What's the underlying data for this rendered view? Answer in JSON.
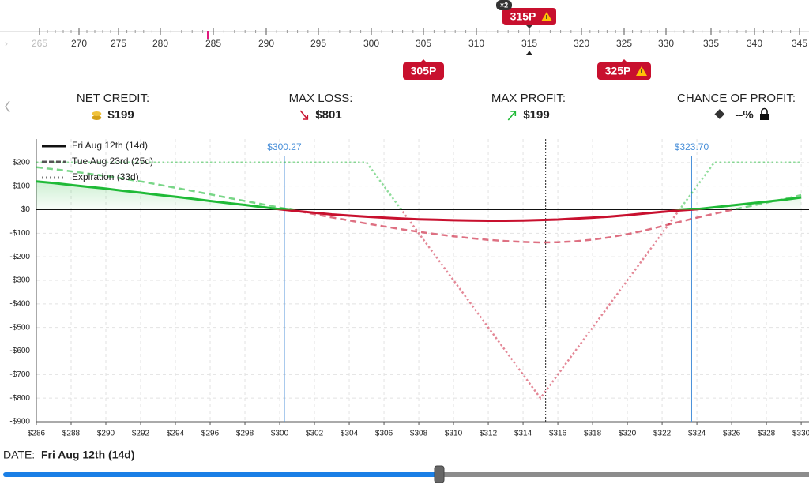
{
  "strike_ruler": {
    "ticks": [
      265,
      270,
      275,
      280,
      285,
      290,
      295,
      300,
      305,
      310,
      315,
      320,
      325,
      330,
      335,
      340,
      345
    ],
    "legs": [
      {
        "label": "315P",
        "strike": 315,
        "quantity_label": "×2",
        "position": "top"
      },
      {
        "label": "305P",
        "strike": 305,
        "position": "bottom"
      },
      {
        "label": "325P",
        "strike": 325,
        "position": "bottom"
      }
    ]
  },
  "summary": [
    {
      "label": "NET CREDIT:",
      "value": "$199"
    },
    {
      "label": "MAX LOSS:",
      "value": "$801"
    },
    {
      "label": "MAX PROFIT:",
      "value": "$199"
    },
    {
      "label": "CHANCE OF PROFIT:",
      "value": "--%"
    }
  ],
  "chart_data": {
    "type": "line",
    "profit_color": "#1fba37",
    "loss_color": "#c8102e",
    "grid": true,
    "legend": "top-left",
    "xlim": [
      286,
      330.45
    ],
    "ylim": [
      -900,
      300
    ],
    "xticks": [
      {
        "value": 286,
        "label": "$286"
      },
      {
        "value": 288,
        "label": "$288"
      },
      {
        "value": 290,
        "label": "$290"
      },
      {
        "value": 292,
        "label": "$292"
      },
      {
        "value": 294,
        "label": "$294"
      },
      {
        "value": 296,
        "label": "$296"
      },
      {
        "value": 298,
        "label": "$298"
      },
      {
        "value": 300,
        "label": "$300"
      },
      {
        "value": 302,
        "label": "$302"
      },
      {
        "value": 304,
        "label": "$304"
      },
      {
        "value": 306,
        "label": "$306"
      },
      {
        "value": 308,
        "label": "$308"
      },
      {
        "value": 310,
        "label": "$310"
      },
      {
        "value": 312,
        "label": "$312"
      },
      {
        "value": 314,
        "label": "$314"
      },
      {
        "value": 316,
        "label": "$316"
      },
      {
        "value": 318,
        "label": "$318"
      },
      {
        "value": 320,
        "label": "$320"
      },
      {
        "value": 322,
        "label": "$322"
      },
      {
        "value": 324,
        "label": "$324"
      },
      {
        "value": 326,
        "label": "$326"
      },
      {
        "value": 328,
        "label": "$328"
      },
      {
        "value": 330,
        "label": "$330"
      }
    ],
    "yticks": [
      {
        "value": 200,
        "label": "$200"
      },
      {
        "value": 100,
        "label": "$100"
      },
      {
        "value": 0,
        "label": "$0"
      },
      {
        "value": -100,
        "label": "-$100"
      },
      {
        "value": -200,
        "label": "-$200"
      },
      {
        "value": -300,
        "label": "-$300"
      },
      {
        "value": -400,
        "label": "-$400"
      },
      {
        "value": -500,
        "label": "-$500"
      },
      {
        "value": -600,
        "label": "-$600"
      },
      {
        "value": -700,
        "label": "-$700"
      },
      {
        "value": -800,
        "label": "-$800"
      },
      {
        "value": -900,
        "label": "-$900"
      }
    ],
    "breakevens": [
      {
        "value": 300.27,
        "label": "$300.27"
      },
      {
        "value": 323.7,
        "label": "$323.70"
      }
    ],
    "spot": 315.3,
    "x": [
      286,
      287,
      288,
      289,
      290,
      291,
      292,
      293,
      294,
      295,
      296,
      297,
      298,
      299,
      300,
      301,
      302,
      303,
      304,
      305,
      306,
      307,
      308,
      309,
      310,
      311,
      312,
      313,
      314,
      315,
      316,
      317,
      318,
      319,
      320,
      321,
      322,
      323,
      324,
      325,
      326,
      327,
      328,
      329,
      330
    ],
    "series": [
      {
        "name": "Fri Aug 12th (14d)",
        "color": "#111111",
        "dash": "solid",
        "values": [
          120,
          113,
          105,
          97,
          89,
          80,
          72,
          63,
          55,
          46,
          37,
          28,
          20,
          11,
          2,
          -6,
          -13,
          -20,
          -25,
          -30,
          -34,
          -38,
          -41,
          -43,
          -45,
          -46,
          -47,
          -47,
          -46,
          -44,
          -42,
          -38,
          -34,
          -29,
          -23,
          -16,
          -9,
          -3,
          2,
          10,
          18,
          26,
          34,
          42,
          52
        ]
      },
      {
        "name": "Tue Aug 23rd (25d)",
        "color": "#555555",
        "dash": "dashed",
        "values": [
          180,
          172,
          163,
          153,
          143,
          132,
          120,
          107,
          93,
          79,
          65,
          51,
          37,
          23,
          9,
          -5,
          -19,
          -33,
          -46,
          -59,
          -71,
          -83,
          -94,
          -104,
          -113,
          -121,
          -128,
          -133,
          -137,
          -139,
          -138,
          -134,
          -127,
          -117,
          -104,
          -88,
          -70,
          -52,
          -34,
          -17,
          -1,
          14,
          30,
          45,
          62
        ]
      },
      {
        "name": "Expiration (33d)",
        "color": "#777777",
        "dash": "dotted",
        "values": [
          200,
          200,
          200,
          200,
          200,
          200,
          200,
          200,
          200,
          200,
          200,
          200,
          200,
          200,
          200,
          200,
          200,
          200,
          200,
          200,
          100,
          0,
          -100,
          -200,
          -300,
          -400,
          -500,
          -600,
          -700,
          -800,
          -700,
          -600,
          -500,
          -400,
          -300,
          -200,
          -100,
          0,
          100,
          200,
          200,
          200,
          200,
          200,
          200
        ]
      }
    ]
  },
  "date_control": {
    "label": "DATE:",
    "value": "Fri Aug 12th (14d)"
  }
}
